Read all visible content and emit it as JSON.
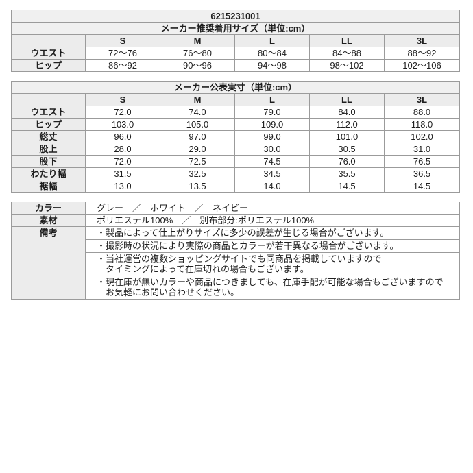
{
  "product_code": "6215231001",
  "colors": {
    "border": "#9b9b9b",
    "header_bg": "#ececec",
    "title_bg": "#f0f0f0",
    "cell_bg": "#ffffff",
    "text": "#1f1f1f"
  },
  "size_tables": [
    {
      "title": "メーカー推奨着用サイズ（単位:cm）",
      "columns": [
        "S",
        "M",
        "L",
        "LL",
        "3L"
      ],
      "rows": [
        {
          "label": "ウエスト",
          "values": [
            "72～76",
            "76～80",
            "80～84",
            "84～88",
            "88～92"
          ]
        },
        {
          "label": "ヒップ",
          "values": [
            "86～92",
            "90～96",
            "94～98",
            "98～102",
            "102～106"
          ]
        }
      ]
    },
    {
      "title": "メーカー公表実寸（単位:cm）",
      "columns": [
        "S",
        "M",
        "L",
        "LL",
        "3L"
      ],
      "rows": [
        {
          "label": "ウエスト",
          "values": [
            "72.0",
            "74.0",
            "79.0",
            "84.0",
            "88.0"
          ]
        },
        {
          "label": "ヒップ",
          "values": [
            "103.0",
            "105.0",
            "109.0",
            "112.0",
            "118.0"
          ]
        },
        {
          "label": "総丈",
          "values": [
            "96.0",
            "97.0",
            "99.0",
            "101.0",
            "102.0"
          ]
        },
        {
          "label": "股上",
          "values": [
            "28.0",
            "29.0",
            "30.0",
            "30.5",
            "31.0"
          ]
        },
        {
          "label": "股下",
          "values": [
            "72.0",
            "72.5",
            "74.5",
            "76.0",
            "76.5"
          ]
        },
        {
          "label": "わたり幅",
          "values": [
            "31.5",
            "32.5",
            "34.5",
            "35.5",
            "36.5"
          ]
        },
        {
          "label": "裾幅",
          "values": [
            "13.0",
            "13.5",
            "14.0",
            "14.5",
            "14.5"
          ]
        }
      ]
    }
  ],
  "info_table": {
    "color_label": "カラー",
    "color_value": "グレー　／　ホワイト　／　ネイビー",
    "material_label": "素材",
    "material_value": "ポリエステル100%　／　別布部分:ポリエステル100%",
    "notes_label": "備考",
    "notes": [
      [
        "・製品によって仕上がりサイズに多少の誤差が生じる場合がございます。"
      ],
      [
        "・撮影時の状況により実際の商品とカラーが若干異なる場合がございます。"
      ],
      [
        "・当社運営の複数ショッピングサイトでも同商品を掲載していますので",
        "タイミングによって在庫切れの場合もございます。"
      ],
      [
        "・現在庫が無いカラーや商品につきましても、在庫手配が可能な場合もございますので",
        "お気軽にお問い合わせください。"
      ]
    ]
  }
}
